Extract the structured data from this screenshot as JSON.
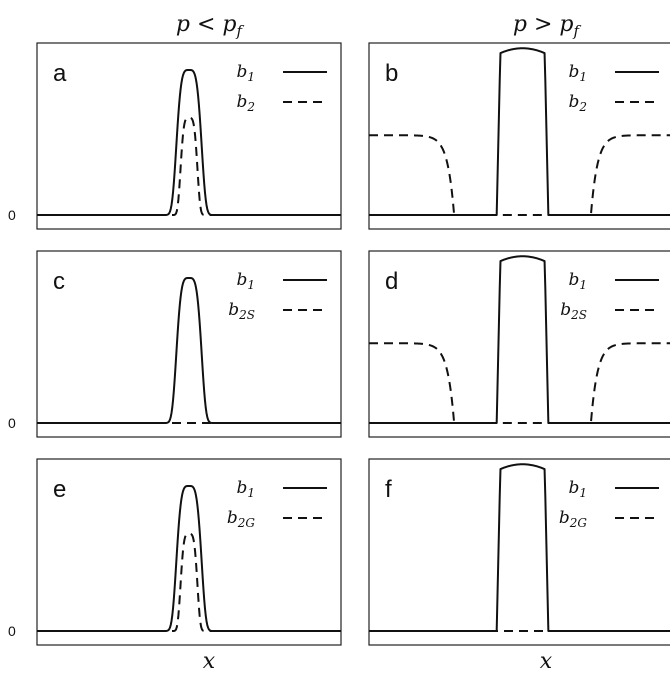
{
  "column_titles": [
    "p < p_f",
    "p > p_f"
  ],
  "column_title_text": [
    {
      "base": "p < p",
      "sub": "f"
    },
    {
      "base": "p > p",
      "sub": "f"
    }
  ],
  "x_axis_label": "x",
  "zero_label": "0",
  "chart_data": [
    {
      "type": "line",
      "panel": "a",
      "regime": "p < p_f",
      "series": [
        {
          "name": "b_1",
          "style": "solid",
          "peak_value": 1.0,
          "peak_center": 0.5,
          "width": 0.045,
          "baseline": 0
        },
        {
          "name": "b_2",
          "style": "dashed",
          "peak_value": 0.67,
          "peak_center": 0.5,
          "width": 0.03,
          "baseline": 0
        }
      ]
    },
    {
      "type": "line",
      "panel": "b",
      "regime": "p > p_f",
      "series": [
        {
          "name": "b_1",
          "style": "solid",
          "peak_value": 1.15,
          "plateau": [
            0.42,
            0.59
          ],
          "baseline": 0
        },
        {
          "name": "b_2",
          "style": "dashed",
          "outer_value": 0.55,
          "gap": [
            0.28,
            0.73
          ],
          "baseline": 0
        }
      ]
    },
    {
      "type": "line",
      "panel": "c",
      "regime": "p < p_f",
      "series": [
        {
          "name": "b_1",
          "style": "solid",
          "peak_value": 1.0,
          "peak_center": 0.5,
          "width": 0.045,
          "baseline": 0
        },
        {
          "name": "b_2S",
          "style": "dashed",
          "value": 0
        }
      ]
    },
    {
      "type": "line",
      "panel": "d",
      "regime": "p > p_f",
      "series": [
        {
          "name": "b_1",
          "style": "solid",
          "peak_value": 1.15,
          "plateau": [
            0.42,
            0.59
          ],
          "baseline": 0
        },
        {
          "name": "b_2S",
          "style": "dashed",
          "outer_value": 0.55,
          "gap": [
            0.28,
            0.73
          ],
          "baseline": 0
        }
      ]
    },
    {
      "type": "line",
      "panel": "e",
      "regime": "p < p_f",
      "series": [
        {
          "name": "b_1",
          "style": "solid",
          "peak_value": 1.0,
          "peak_center": 0.5,
          "width": 0.045,
          "baseline": 0
        },
        {
          "name": "b_2G",
          "style": "dashed",
          "peak_value": 0.67,
          "peak_center": 0.5,
          "width": 0.03,
          "baseline": 0
        }
      ]
    },
    {
      "type": "line",
      "panel": "f",
      "regime": "p > p_f",
      "series": [
        {
          "name": "b_1",
          "style": "solid",
          "peak_value": 1.15,
          "plateau": [
            0.42,
            0.59
          ],
          "baseline": 0
        },
        {
          "name": "b_2G",
          "style": "dashed",
          "value": 0
        }
      ]
    }
  ],
  "legend_text": [
    [
      {
        "base": "b",
        "sub": "1"
      },
      {
        "base": "b",
        "sub": "2"
      }
    ],
    [
      {
        "base": "b",
        "sub": "1"
      },
      {
        "base": "b",
        "sub": "2"
      }
    ],
    [
      {
        "base": "b",
        "sub": "1"
      },
      {
        "base": "b",
        "sub": "2S"
      }
    ],
    [
      {
        "base": "b",
        "sub": "1"
      },
      {
        "base": "b",
        "sub": "2S"
      }
    ],
    [
      {
        "base": "b",
        "sub": "1"
      },
      {
        "base": "b",
        "sub": "2G"
      }
    ],
    [
      {
        "base": "b",
        "sub": "1"
      },
      {
        "base": "b",
        "sub": "2G"
      }
    ]
  ]
}
